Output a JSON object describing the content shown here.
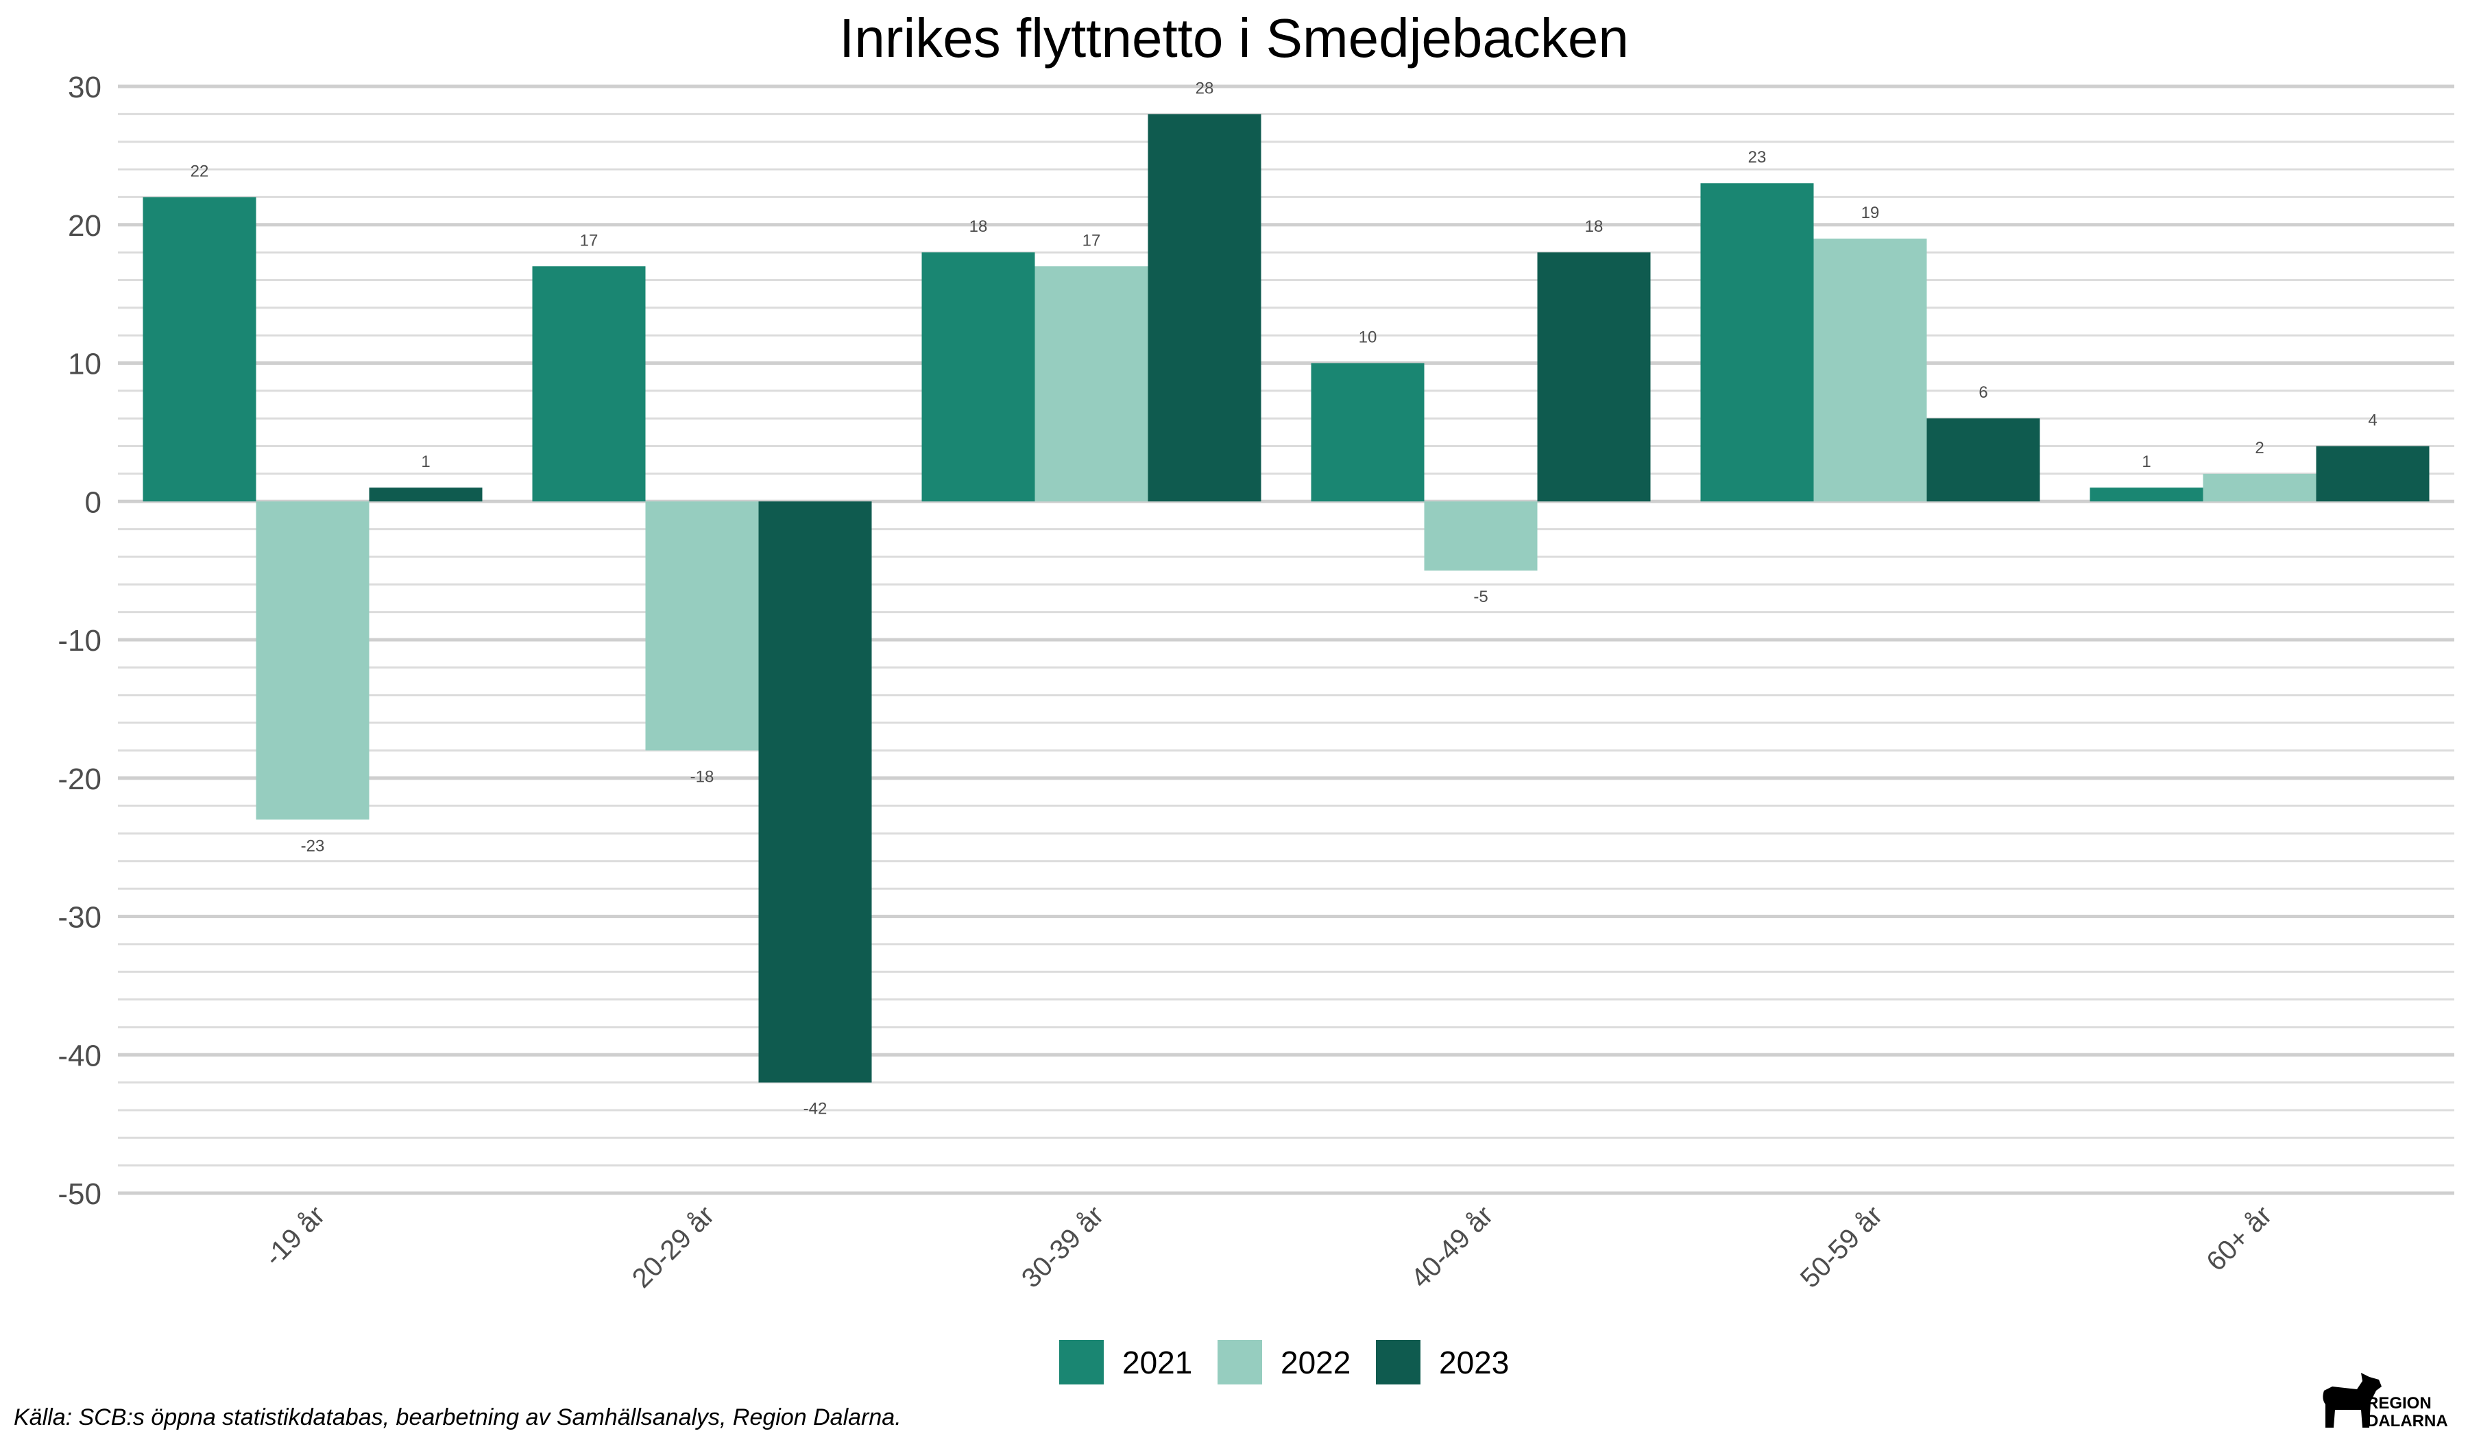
{
  "chart_data": {
    "type": "bar",
    "title": "Inrikes flyttnetto i Smedjebacken",
    "xlabel": "",
    "ylabel": "",
    "categories": [
      "-19 år",
      "20-29 år",
      "30-39 år",
      "40-49 år",
      "50-59 år",
      "60+ år"
    ],
    "series": [
      {
        "name": "2021",
        "color": "#1a8672",
        "values": [
          22,
          17,
          18,
          10,
          23,
          1
        ]
      },
      {
        "name": "2022",
        "color": "#96cdbf",
        "values": [
          -23,
          -18,
          17,
          -5,
          19,
          2
        ]
      },
      {
        "name": "2023",
        "color": "#0f5b4f",
        "values": [
          1,
          -42,
          28,
          18,
          6,
          4
        ]
      }
    ],
    "ylim": [
      -50,
      30
    ],
    "yticks": [
      30,
      20,
      10,
      0,
      -10,
      -20,
      -30,
      -40,
      -50
    ],
    "grid": true,
    "legend_position": "bottom"
  },
  "caption": "Källa: SCB:s öppna statistikdatabas, bearbetning av Samhällsanalys, Region Dalarna.",
  "logo": {
    "line1": "REGION",
    "line2": "DALARNA"
  }
}
